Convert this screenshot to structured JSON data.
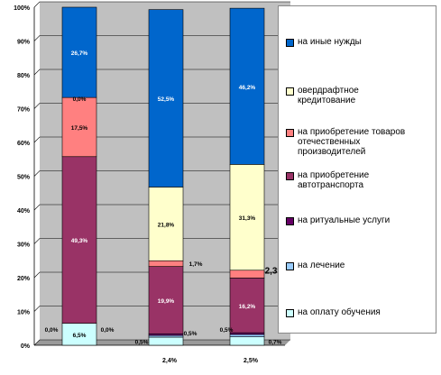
{
  "chart_data": {
    "type": "bar",
    "stacked": true,
    "categories": [
      "",
      "2,4%",
      "2,5%"
    ],
    "ylim": [
      0,
      100
    ],
    "y_ticks": [
      "0%",
      "10%",
      "20%",
      "30%",
      "40%",
      "50%",
      "60%",
      "70%",
      "80%",
      "90%",
      "100%"
    ],
    "series": [
      {
        "name": "на оплату обучения",
        "color": "#ccffff",
        "values": [
          6.5,
          2.4,
          2.5
        ],
        "labels": [
          "6,5%",
          "",
          ""
        ]
      },
      {
        "name": "на лечение",
        "color": "#99ccff",
        "values": [
          0.0,
          0.5,
          0.7
        ],
        "labels": [
          "0,0%",
          "0,5%",
          "0,7%"
        ]
      },
      {
        "name": "на ритуальные услуги",
        "color": "#660066",
        "values": [
          0.0,
          0.5,
          0.5
        ],
        "labels": [
          "0,0%",
          "0,5%",
          "0,5%"
        ]
      },
      {
        "name": "на приобретение\nавтотранспорта",
        "color": "#993366",
        "values": [
          49.3,
          19.9,
          16.2
        ],
        "labels": [
          "49,3%",
          "19,9%",
          "16,2%"
        ]
      },
      {
        "name": "на приобретение товаров\nотечественных\nпроизводителей",
        "color": "#ff8080",
        "values": [
          17.5,
          1.7,
          2.3
        ],
        "labels": [
          "17,5%",
          "1,7%",
          "2,3%"
        ]
      },
      {
        "name": "овердрафтное\nкредитование",
        "color": "#ffffcc",
        "values": [
          0.0,
          21.8,
          31.3
        ],
        "labels": [
          "0,0%",
          "21,8%",
          "31,3%"
        ]
      },
      {
        "name": "на иные нужды",
        "color": "#0066cc",
        "values": [
          26.7,
          52.5,
          46.2
        ],
        "labels": [
          "26,7%",
          "52,5%",
          "46,2%"
        ]
      }
    ],
    "legend_order": [
      6,
      5,
      4,
      3,
      2,
      1,
      0
    ],
    "legend_position": "right"
  }
}
